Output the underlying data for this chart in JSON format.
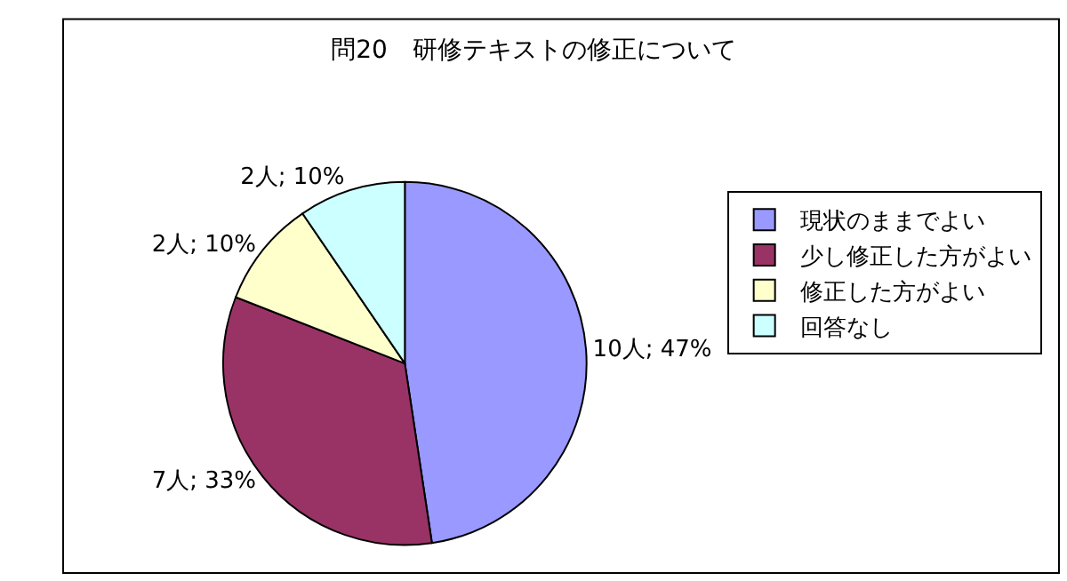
{
  "chart_data": {
    "type": "pie",
    "title": "問20　研修テキストの修正について",
    "categories": [
      "現状のままでよい",
      "少し修正した方がよい",
      "修正した方がよい",
      "回答なし"
    ],
    "values": [
      10,
      7,
      2,
      2
    ],
    "value_labels": [
      "10人; 47%",
      "7人; 33%",
      "2人; 10%",
      "2人; 10%"
    ],
    "colors": [
      "#9999ff",
      "#993366",
      "#ffffcc",
      "#ccffff"
    ],
    "legend": "right"
  }
}
